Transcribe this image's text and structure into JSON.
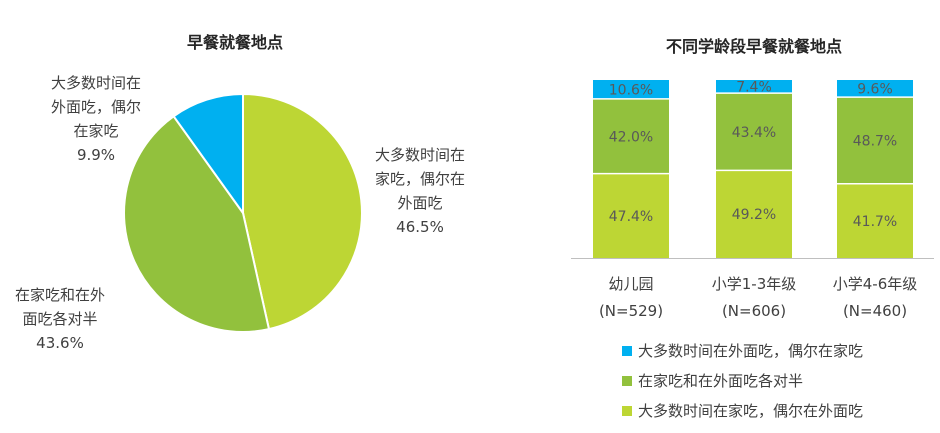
{
  "colors": {
    "blue": "#00b0f0",
    "green": "#92c13d",
    "lime": "#bdd634",
    "white": "#ffffff",
    "axis": "#bfbfbf"
  },
  "chart_data": [
    {
      "type": "pie",
      "title": "早餐就餐地点",
      "slices": [
        {
          "label_lines": [
            "大多数时间在",
            "家吃，偶尔在",
            "外面吃",
            "46.5%"
          ],
          "label": "大多数时间在家吃，偶尔在外面吃",
          "value": 46.5,
          "color": "#bdd634"
        },
        {
          "label_lines": [
            "在家吃和在外",
            "面吃各对半",
            "43.6%"
          ],
          "label": "在家吃和在外面吃各对半",
          "value": 43.6,
          "color": "#92c13d"
        },
        {
          "label_lines": [
            "大多数时间在",
            "外面吃，偶尔",
            "在家吃",
            "9.9%"
          ],
          "label": "大多数时间在外面吃，偶尔在家吃",
          "value": 9.9,
          "color": "#00b0f0"
        }
      ]
    },
    {
      "type": "bar",
      "stacked": true,
      "title": "不同学龄段早餐就餐地点",
      "categories": [
        {
          "line1": "幼儿园",
          "line2": "(N=529)"
        },
        {
          "line1": "小学1-3年级",
          "line2": "(N=606)"
        },
        {
          "line1": "小学4-6年级",
          "line2": "(N=460)"
        }
      ],
      "ylim": [
        0,
        100
      ],
      "series": [
        {
          "name": "大多数时间在家吃，偶尔在外面吃",
          "values": [
            47.4,
            49.2,
            41.7
          ],
          "labels": [
            "47.4%",
            "49.2%",
            "41.7%"
          ],
          "color": "#bdd634"
        },
        {
          "name": "在家吃和在外面吃各对半",
          "values": [
            42.0,
            43.4,
            48.7
          ],
          "labels": [
            "42.0%",
            "43.4%",
            "48.7%"
          ],
          "color": "#92c13d"
        },
        {
          "name": "大多数时间在外面吃，偶尔在家吃",
          "values": [
            10.6,
            7.4,
            9.6
          ],
          "labels": [
            "10.6%",
            "7.4%",
            "9.6%"
          ],
          "color": "#00b0f0"
        }
      ],
      "legend": {
        "placement": "bottom",
        "items": [
          {
            "name": "大多数时间在外面吃，偶尔在家吃",
            "color": "#00b0f0"
          },
          {
            "name": "在家吃和在外面吃各对半",
            "color": "#92c13d"
          },
          {
            "name": "大多数时间在家吃，偶尔在外面吃",
            "color": "#bdd634"
          }
        ]
      }
    }
  ]
}
